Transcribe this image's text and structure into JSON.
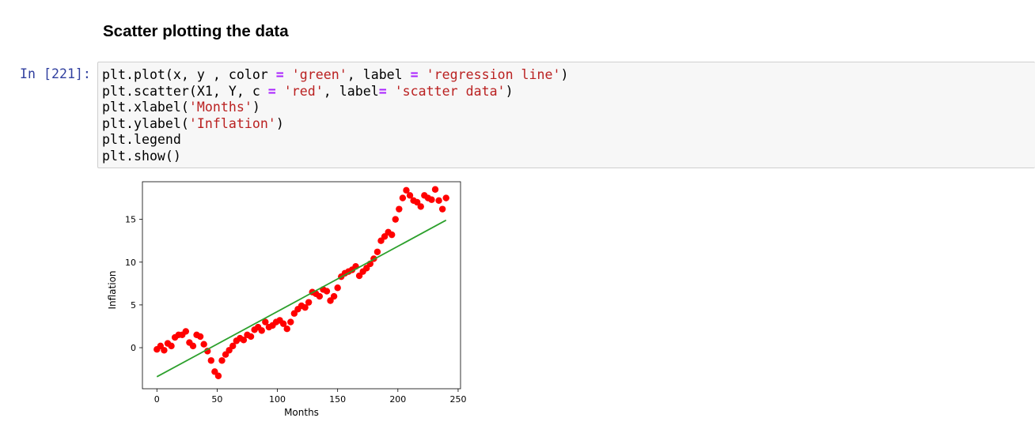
{
  "heading": "Scatter plotting the data",
  "prompt": "In [221]:",
  "code_lines": [
    [
      {
        "t": "plt.plot(x, y , color "
      },
      {
        "t": "=",
        "c": "op"
      },
      {
        "t": " "
      },
      {
        "t": "'green'",
        "c": "str"
      },
      {
        "t": ", label "
      },
      {
        "t": "=",
        "c": "op"
      },
      {
        "t": " "
      },
      {
        "t": "'regression line'",
        "c": "str"
      },
      {
        "t": ")"
      }
    ],
    [
      {
        "t": "plt.scatter(X1, Y, c "
      },
      {
        "t": "=",
        "c": "op"
      },
      {
        "t": " "
      },
      {
        "t": "'red'",
        "c": "str"
      },
      {
        "t": ", label"
      },
      {
        "t": "=",
        "c": "op"
      },
      {
        "t": " "
      },
      {
        "t": "'scatter data'",
        "c": "str"
      },
      {
        "t": ")"
      }
    ],
    [
      {
        "t": "plt.xlabel("
      },
      {
        "t": "'Months'",
        "c": "str"
      },
      {
        "t": ")"
      }
    ],
    [
      {
        "t": "plt.ylabel("
      },
      {
        "t": "'Inflation'",
        "c": "str"
      },
      {
        "t": ")"
      }
    ],
    [
      {
        "t": "plt.legend"
      }
    ],
    [
      {
        "t": "plt.show()"
      }
    ]
  ],
  "chart_data": {
    "type": "scatter",
    "xlabel": "Months",
    "ylabel": "Inflation",
    "xlim": [
      -12,
      252
    ],
    "ylim": [
      -4.8,
      19.4
    ],
    "xticks": [
      0,
      50,
      100,
      150,
      200,
      250
    ],
    "yticks": [
      0,
      5,
      10,
      15
    ],
    "colors": {
      "scatter": "#ff0000",
      "line": "#2ca02c"
    },
    "grid": false,
    "regression_line": {
      "x": [
        0,
        240
      ],
      "y": [
        -3.4,
        14.9
      ]
    },
    "scatter": {
      "x": [
        0,
        3,
        6,
        9,
        12,
        15,
        18,
        21,
        24,
        27,
        30,
        33,
        36,
        39,
        42,
        45,
        48,
        51,
        54,
        57,
        60,
        63,
        66,
        69,
        72,
        75,
        78,
        81,
        84,
        87,
        90,
        93,
        96,
        99,
        102,
        105,
        108,
        111,
        114,
        117,
        120,
        123,
        126,
        129,
        132,
        135,
        138,
        141,
        144,
        147,
        150,
        153,
        156,
        159,
        162,
        165,
        168,
        171,
        174,
        177,
        180,
        183,
        186,
        189,
        192,
        195,
        198,
        201,
        204,
        207,
        210,
        213,
        216,
        219,
        222,
        225,
        228,
        231,
        234,
        237,
        240
      ],
      "y": [
        -0.2,
        0.2,
        -0.3,
        0.5,
        0.2,
        1.2,
        1.5,
        1.5,
        1.9,
        0.6,
        0.2,
        1.5,
        1.3,
        0.4,
        -0.4,
        -1.5,
        -2.8,
        -3.3,
        -1.5,
        -0.8,
        -0.3,
        0.2,
        0.8,
        1.1,
        0.9,
        1.5,
        1.3,
        2.1,
        2.4,
        2.0,
        3.0,
        2.4,
        2.6,
        3.0,
        3.2,
        2.8,
        2.2,
        3.0,
        4.0,
        4.5,
        4.9,
        4.7,
        5.3,
        6.5,
        6.3,
        6.0,
        6.8,
        6.6,
        5.5,
        6.0,
        7.0,
        8.3,
        8.7,
        8.9,
        9.1,
        9.5,
        8.4,
        8.9,
        9.3,
        9.8,
        10.4,
        11.2,
        12.5,
        13.0,
        13.5,
        13.2,
        15.0,
        16.2,
        17.5,
        18.4,
        17.8,
        17.2,
        17.0,
        16.5,
        17.8,
        17.5,
        17.3,
        18.5,
        17.2,
        16.2,
        17.5
      ]
    }
  }
}
